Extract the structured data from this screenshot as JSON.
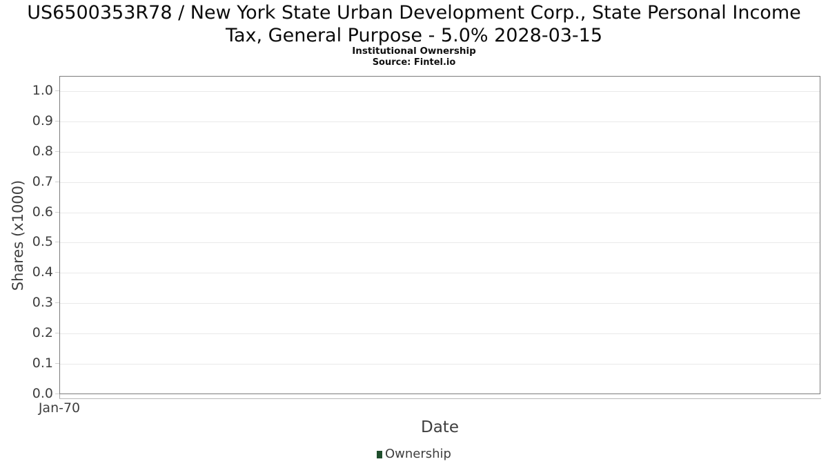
{
  "header": {
    "title_line1": "US6500353R78 / New York State Urban Development Corp., State Personal Income",
    "title_line2": "Tax, General Purpose - 5.0% 2028-03-15",
    "subtitle": "Institutional Ownership",
    "source": "Source: Fintel.io"
  },
  "chart_data": {
    "type": "line",
    "title": "US6500353R78 / New York State Urban Development Corp., State Personal Income Tax, General Purpose - 5.0% 2028-03-15",
    "subtitle": "Institutional Ownership",
    "source": "Source: Fintel.io",
    "xlabel": "Date",
    "ylabel": "Shares (x1000)",
    "ylim": [
      0,
      1.05
    ],
    "y_ticks": [
      0.0,
      0.1,
      0.2,
      0.3,
      0.4,
      0.5,
      0.6,
      0.7,
      0.8,
      0.9,
      1.0
    ],
    "y_tick_labels": [
      "0.0",
      "0.1",
      "0.2",
      "0.3",
      "0.4",
      "0.5",
      "0.6",
      "0.7",
      "0.8",
      "0.9",
      "1.0"
    ],
    "x_tick_labels": [
      "Jan-70"
    ],
    "grid": "horizontal",
    "legend_position": "bottom-center",
    "series": [
      {
        "name": "Ownership",
        "color": "#1f4e2c",
        "x": [],
        "y": []
      }
    ]
  },
  "legend": {
    "entries": [
      {
        "label": "Ownership",
        "color": "#1f4e2c"
      }
    ]
  },
  "colors": {
    "background": "#ffffff",
    "plot_border": "#7b7b7b",
    "gridline": "#e9e9e9",
    "y_tick": "#cfcfcf",
    "x_axis_line": "#b8b8b8",
    "axis_text": "#3e3e3e",
    "title_text": "#0b0b0b",
    "legend_marker": "#1f4e2c"
  }
}
